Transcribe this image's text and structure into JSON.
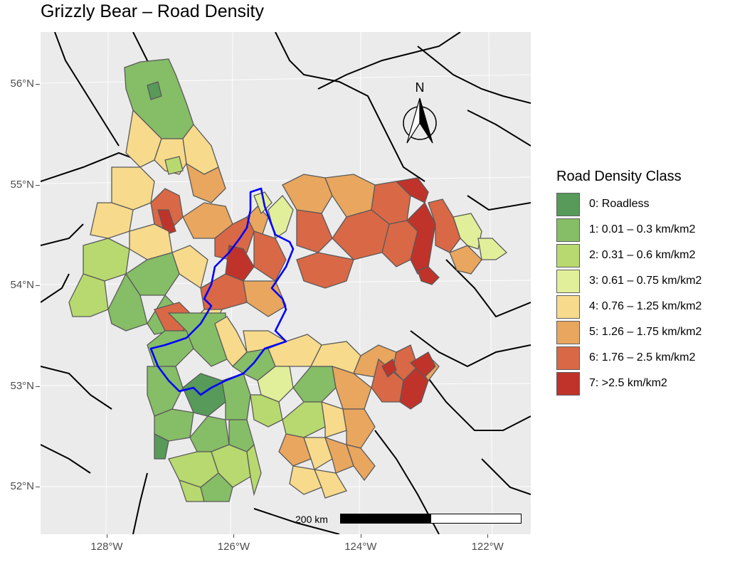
{
  "title": "Grizzly Bear – Road Density",
  "axes": {
    "y_ticks": [
      {
        "label": "56°N",
        "value": 56
      },
      {
        "label": "55°N",
        "value": 55
      },
      {
        "label": "54°N",
        "value": 54
      },
      {
        "label": "53°N",
        "value": 53
      },
      {
        "label": "52°N",
        "value": 52
      }
    ],
    "x_ticks": [
      {
        "label": "128°W",
        "value": -128
      },
      {
        "label": "126°W",
        "value": -126
      },
      {
        "label": "124°W",
        "value": -124
      },
      {
        "label": "122°W",
        "value": -122
      }
    ]
  },
  "north_arrow": {
    "label": "N"
  },
  "scale_bar": {
    "label": "200 km"
  },
  "legend": {
    "title": "Road Density Class",
    "items": [
      {
        "label": "0:  Roadless",
        "color": "#579a59"
      },
      {
        "label": "1:  0.01 – 0.3 km/km2",
        "color": "#86bd67"
      },
      {
        "label": "2:  0.31 – 0.6 km/km2",
        "color": "#b8d96f"
      },
      {
        "label": "3:  0.61 – 0.75 km/km2",
        "color": "#e2ef9a"
      },
      {
        "label": "4:  0.76 – 1.25 km/km2",
        "color": "#f7da8c"
      },
      {
        "label": "5:  1.26 – 1.75 km/km2",
        "color": "#e8a65f"
      },
      {
        "label": "6:  1.76 – 2.5 km/km2",
        "color": "#d96846"
      },
      {
        "label": "7:  >2.5 km/km2",
        "color": "#c0332a"
      }
    ]
  },
  "colors": {
    "panel_background": "#ebebeb",
    "gridline": "#ffffff",
    "outline": "#000000",
    "highlight_boundary": "#0000ff"
  }
}
